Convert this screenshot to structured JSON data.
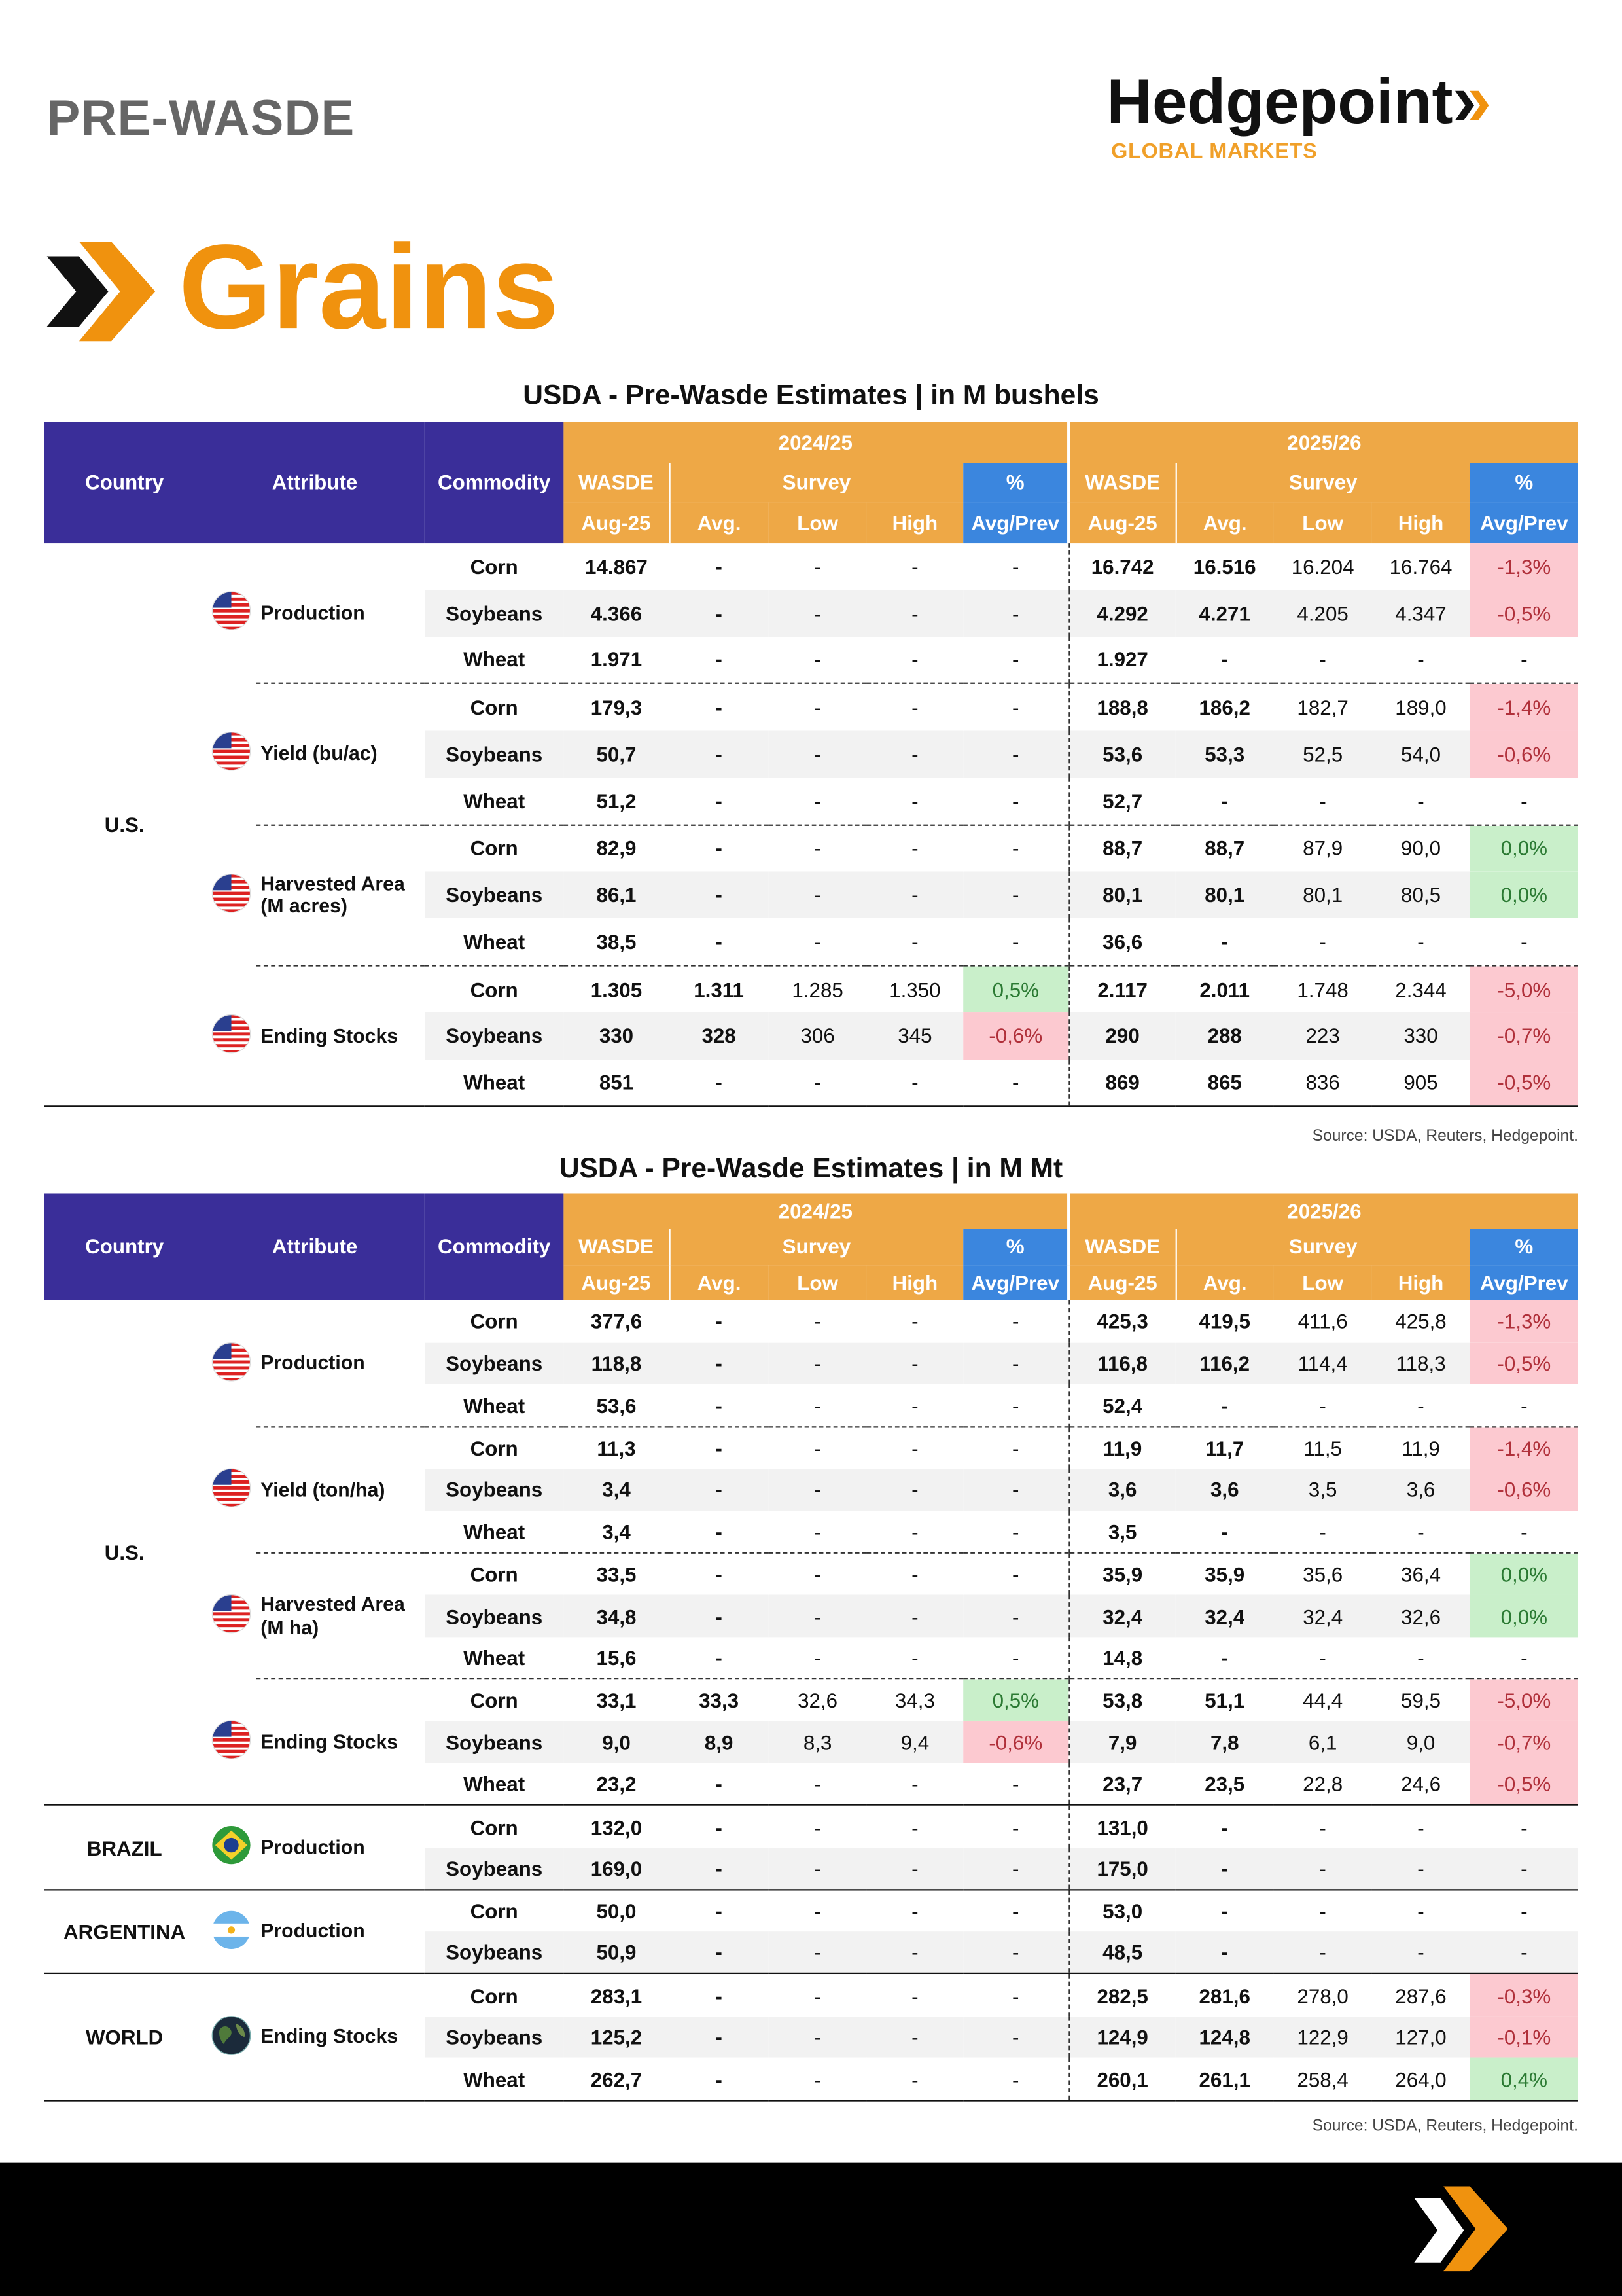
{
  "header": {
    "label": "PRE-WASDE",
    "logo": "Hedgepoint",
    "logo_sub": "GLOBAL MARKETS"
  },
  "title": "Grains",
  "tables": [
    {
      "title": "USDA - Pre-Wasde Estimates | in M bushels",
      "header": {
        "country": "Country",
        "attribute": "Attribute",
        "commodity": "Commodity",
        "years": [
          "2024/25",
          "2025/26"
        ],
        "groups": [
          "WASDE",
          "Survey",
          "%"
        ],
        "columns": [
          "Aug-25",
          "Avg.",
          "Low",
          "High",
          "Avg/Prev"
        ]
      },
      "groups": [
        {
          "country": "U.S.",
          "sections": [
            {
              "attribute": "Production",
              "flag": "us",
              "rows": [
                {
                  "commodity": "Corn",
                  "values": [
                    "14.867",
                    "-",
                    "-",
                    "-",
                    "-",
                    "16.742",
                    "16.516",
                    "16.204",
                    "16.764",
                    "-1,3%"
                  ]
                },
                {
                  "commodity": "Soybeans",
                  "values": [
                    "4.366",
                    "-",
                    "-",
                    "-",
                    "-",
                    "4.292",
                    "4.271",
                    "4.205",
                    "4.347",
                    "-0,5%"
                  ]
                },
                {
                  "commodity": "Wheat",
                  "values": [
                    "1.971",
                    "-",
                    "-",
                    "-",
                    "-",
                    "1.927",
                    "-",
                    "-",
                    "-",
                    "-"
                  ]
                }
              ]
            },
            {
              "attribute": "Yield (bu/ac)",
              "flag": "us",
              "rows": [
                {
                  "commodity": "Corn",
                  "values": [
                    "179,3",
                    "-",
                    "-",
                    "-",
                    "-",
                    "188,8",
                    "186,2",
                    "182,7",
                    "189,0",
                    "-1,4%"
                  ]
                },
                {
                  "commodity": "Soybeans",
                  "values": [
                    "50,7",
                    "-",
                    "-",
                    "-",
                    "-",
                    "53,6",
                    "53,3",
                    "52,5",
                    "54,0",
                    "-0,6%"
                  ]
                },
                {
                  "commodity": "Wheat",
                  "values": [
                    "51,2",
                    "-",
                    "-",
                    "-",
                    "-",
                    "52,7",
                    "-",
                    "-",
                    "-",
                    "-"
                  ]
                }
              ]
            },
            {
              "attribute": "Harvested Area (M acres)",
              "flag": "us",
              "rows": [
                {
                  "commodity": "Corn",
                  "values": [
                    "82,9",
                    "-",
                    "-",
                    "-",
                    "-",
                    "88,7",
                    "88,7",
                    "87,9",
                    "90,0",
                    "0,0%"
                  ]
                },
                {
                  "commodity": "Soybeans",
                  "values": [
                    "86,1",
                    "-",
                    "-",
                    "-",
                    "-",
                    "80,1",
                    "80,1",
                    "80,1",
                    "80,5",
                    "0,0%"
                  ]
                },
                {
                  "commodity": "Wheat",
                  "values": [
                    "38,5",
                    "-",
                    "-",
                    "-",
                    "-",
                    "36,6",
                    "-",
                    "-",
                    "-",
                    "-"
                  ]
                }
              ]
            },
            {
              "attribute": "Ending Stocks",
              "flag": "us",
              "rows": [
                {
                  "commodity": "Corn",
                  "values": [
                    "1.305",
                    "1.311",
                    "1.285",
                    "1.350",
                    "0,5%",
                    "2.117",
                    "2.011",
                    "1.748",
                    "2.344",
                    "-5,0%"
                  ]
                },
                {
                  "commodity": "Soybeans",
                  "values": [
                    "330",
                    "328",
                    "306",
                    "345",
                    "-0,6%",
                    "290",
                    "288",
                    "223",
                    "330",
                    "-0,7%"
                  ]
                },
                {
                  "commodity": "Wheat",
                  "values": [
                    "851",
                    "-",
                    "-",
                    "-",
                    "-",
                    "869",
                    "865",
                    "836",
                    "905",
                    "-0,5%"
                  ]
                }
              ]
            }
          ]
        }
      ],
      "source": "Source: USDA, Reuters, Hedgepoint."
    },
    {
      "title": "USDA - Pre-Wasde Estimates | in M Mt",
      "header": {
        "country": "Country",
        "attribute": "Attribute",
        "commodity": "Commodity",
        "years": [
          "2024/25",
          "2025/26"
        ],
        "groups": [
          "WASDE",
          "Survey",
          "%"
        ],
        "columns": [
          "Aug-25",
          "Avg.",
          "Low",
          "High",
          "Avg/Prev"
        ]
      },
      "groups": [
        {
          "country": "U.S.",
          "sections": [
            {
              "attribute": "Production",
              "flag": "us",
              "rows": [
                {
                  "commodity": "Corn",
                  "values": [
                    "377,6",
                    "-",
                    "-",
                    "-",
                    "-",
                    "425,3",
                    "419,5",
                    "411,6",
                    "425,8",
                    "-1,3%"
                  ]
                },
                {
                  "commodity": "Soybeans",
                  "values": [
                    "118,8",
                    "-",
                    "-",
                    "-",
                    "-",
                    "116,8",
                    "116,2",
                    "114,4",
                    "118,3",
                    "-0,5%"
                  ]
                },
                {
                  "commodity": "Wheat",
                  "values": [
                    "53,6",
                    "-",
                    "-",
                    "-",
                    "-",
                    "52,4",
                    "-",
                    "-",
                    "-",
                    "-"
                  ]
                }
              ]
            },
            {
              "attribute": "Yield (ton/ha)",
              "flag": "us",
              "rows": [
                {
                  "commodity": "Corn",
                  "values": [
                    "11,3",
                    "-",
                    "-",
                    "-",
                    "-",
                    "11,9",
                    "11,7",
                    "11,5",
                    "11,9",
                    "-1,4%"
                  ]
                },
                {
                  "commodity": "Soybeans",
                  "values": [
                    "3,4",
                    "-",
                    "-",
                    "-",
                    "-",
                    "3,6",
                    "3,6",
                    "3,5",
                    "3,6",
                    "-0,6%"
                  ]
                },
                {
                  "commodity": "Wheat",
                  "values": [
                    "3,4",
                    "-",
                    "-",
                    "-",
                    "-",
                    "3,5",
                    "-",
                    "-",
                    "-",
                    "-"
                  ]
                }
              ]
            },
            {
              "attribute": "Harvested Area (M ha)",
              "flag": "us",
              "rows": [
                {
                  "commodity": "Corn",
                  "values": [
                    "33,5",
                    "-",
                    "-",
                    "-",
                    "-",
                    "35,9",
                    "35,9",
                    "35,6",
                    "36,4",
                    "0,0%"
                  ]
                },
                {
                  "commodity": "Soybeans",
                  "values": [
                    "34,8",
                    "-",
                    "-",
                    "-",
                    "-",
                    "32,4",
                    "32,4",
                    "32,4",
                    "32,6",
                    "0,0%"
                  ]
                },
                {
                  "commodity": "Wheat",
                  "values": [
                    "15,6",
                    "-",
                    "-",
                    "-",
                    "-",
                    "14,8",
                    "-",
                    "-",
                    "-",
                    "-"
                  ]
                }
              ]
            },
            {
              "attribute": "Ending Stocks",
              "flag": "us",
              "rows": [
                {
                  "commodity": "Corn",
                  "values": [
                    "33,1",
                    "33,3",
                    "32,6",
                    "34,3",
                    "0,5%",
                    "53,8",
                    "51,1",
                    "44,4",
                    "59,5",
                    "-5,0%"
                  ]
                },
                {
                  "commodity": "Soybeans",
                  "values": [
                    "9,0",
                    "8,9",
                    "8,3",
                    "9,4",
                    "-0,6%",
                    "7,9",
                    "7,8",
                    "6,1",
                    "9,0",
                    "-0,7%"
                  ]
                },
                {
                  "commodity": "Wheat",
                  "values": [
                    "23,2",
                    "-",
                    "-",
                    "-",
                    "-",
                    "23,7",
                    "23,5",
                    "22,8",
                    "24,6",
                    "-0,5%"
                  ]
                }
              ]
            }
          ]
        },
        {
          "country": "BRAZIL",
          "sections": [
            {
              "attribute": "Production",
              "flag": "br",
              "rows": [
                {
                  "commodity": "Corn",
                  "values": [
                    "132,0",
                    "-",
                    "-",
                    "-",
                    "-",
                    "131,0",
                    "-",
                    "-",
                    "-",
                    "-"
                  ]
                },
                {
                  "commodity": "Soybeans",
                  "values": [
                    "169,0",
                    "-",
                    "-",
                    "-",
                    "-",
                    "175,0",
                    "-",
                    "-",
                    "-",
                    "-"
                  ]
                }
              ]
            }
          ]
        },
        {
          "country": "ARGENTINA",
          "sections": [
            {
              "attribute": "Production",
              "flag": "ar",
              "rows": [
                {
                  "commodity": "Corn",
                  "values": [
                    "50,0",
                    "-",
                    "-",
                    "-",
                    "-",
                    "53,0",
                    "-",
                    "-",
                    "-",
                    "-"
                  ]
                },
                {
                  "commodity": "Soybeans",
                  "values": [
                    "50,9",
                    "-",
                    "-",
                    "-",
                    "-",
                    "48,5",
                    "-",
                    "-",
                    "-",
                    "-"
                  ]
                }
              ]
            }
          ]
        },
        {
          "country": "WORLD",
          "sections": [
            {
              "attribute": "Ending Stocks",
              "flag": "world",
              "rows": [
                {
                  "commodity": "Corn",
                  "values": [
                    "283,1",
                    "-",
                    "-",
                    "-",
                    "-",
                    "282,5",
                    "281,6",
                    "278,0",
                    "287,6",
                    "-0,3%"
                  ]
                },
                {
                  "commodity": "Soybeans",
                  "values": [
                    "125,2",
                    "-",
                    "-",
                    "-",
                    "-",
                    "124,9",
                    "124,8",
                    "122,9",
                    "127,0",
                    "-0,1%"
                  ]
                },
                {
                  "commodity": "Wheat",
                  "values": [
                    "262,7",
                    "-",
                    "-",
                    "-",
                    "-",
                    "260,1",
                    "261,1",
                    "258,4",
                    "264,0",
                    "0,4%"
                  ]
                }
              ]
            }
          ]
        }
      ],
      "source": "Source: USDA, Reuters, Hedgepoint."
    }
  ]
}
